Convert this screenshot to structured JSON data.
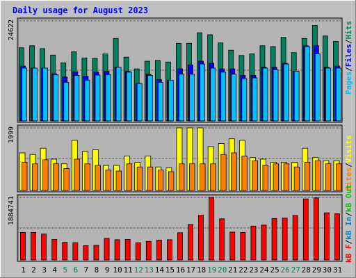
{
  "colors": {
    "background": "#c0c0c0",
    "panel": "#b4b4b4",
    "title": "#0000ff",
    "hits": "#00805c",
    "files": "#0000ff",
    "pages": "#00c0ff",
    "visits": "#ffff00",
    "sites": "#ff8000",
    "kbf": "#ff0000",
    "kbin": "#0080c0",
    "kbout": "#00c000",
    "weekend_day": "#00805c"
  },
  "chart_data": [
    {
      "type": "bar",
      "title": "Daily usage for August 2023",
      "panel": "hits-files-pages",
      "categories": [
        "1",
        "2",
        "3",
        "4",
        "5",
        "6",
        "7",
        "8",
        "9",
        "10",
        "11",
        "12",
        "13",
        "14",
        "15",
        "16",
        "17",
        "18",
        "19",
        "20",
        "21",
        "22",
        "23",
        "24",
        "25",
        "26",
        "27",
        "28",
        "29",
        "30",
        "31"
      ],
      "weekend_days": [
        "5",
        "6",
        "12",
        "13",
        "19",
        "20",
        "26",
        "27"
      ],
      "ymax_label": "24622",
      "ylim": [
        0,
        24622
      ],
      "legend": {
        "pages": "Pages",
        "files": "Files",
        "hits": "Hits",
        "sep": "/"
      },
      "series": [
        {
          "name": "Hits",
          "values": [
            18000,
            18500,
            17800,
            16200,
            14300,
            17000,
            15500,
            15400,
            16500,
            20300,
            15700,
            12800,
            14700,
            14900,
            14500,
            19100,
            19100,
            21700,
            21200,
            19200,
            17400,
            16100,
            16500,
            18500,
            18300,
            20600,
            16800,
            20300,
            23500,
            20900,
            19600
          ]
        },
        {
          "name": "Files",
          "values": [
            13500,
            13000,
            13000,
            11600,
            10800,
            12100,
            11000,
            12000,
            12200,
            13200,
            12200,
            9200,
            11500,
            10200,
            10000,
            12800,
            13800,
            14700,
            14200,
            12800,
            12800,
            11200,
            11200,
            13200,
            13200,
            14200,
            12200,
            18500,
            18500,
            13200,
            13500
          ]
        },
        {
          "name": "Pages",
          "values": [
            13000,
            13000,
            13000,
            11400,
            9500,
            11200,
            10000,
            11300,
            11400,
            13200,
            12000,
            9200,
            11200,
            9500,
            10000,
            11500,
            11500,
            14000,
            13000,
            12000,
            11500,
            10400,
            10600,
            13000,
            12600,
            14000,
            12200,
            18300,
            16500,
            13000,
            13000
          ]
        }
      ]
    },
    {
      "type": "bar",
      "panel": "visits-sites",
      "categories": [
        "1",
        "2",
        "3",
        "4",
        "5",
        "6",
        "7",
        "8",
        "9",
        "10",
        "11",
        "12",
        "13",
        "14",
        "15",
        "16",
        "17",
        "18",
        "19",
        "20",
        "21",
        "22",
        "23",
        "24",
        "25",
        "26",
        "27",
        "28",
        "29",
        "30",
        "31"
      ],
      "ymax_label": "1999",
      "ylim": [
        0,
        1999
      ],
      "legend": {
        "visits": "Visits",
        "sites": "Sites",
        "sep": "/"
      },
      "series": [
        {
          "name": "Visits",
          "values": [
            1200,
            1150,
            1350,
            1000,
            850,
            1600,
            1250,
            1300,
            800,
            800,
            1100,
            900,
            1100,
            750,
            720,
            1999,
            1999,
            1999,
            1400,
            1500,
            1650,
            1600,
            1050,
            1000,
            900,
            900,
            900,
            1350,
            1050,
            950,
            950
          ]
        },
        {
          "name": "Sites",
          "values": [
            900,
            850,
            980,
            850,
            700,
            1000,
            850,
            800,
            650,
            620,
            850,
            750,
            750,
            650,
            600,
            850,
            850,
            850,
            850,
            1150,
            1200,
            1100,
            950,
            800,
            850,
            850,
            750,
            900,
            950,
            850,
            850
          ]
        }
      ]
    },
    {
      "type": "bar",
      "panel": "kbytes",
      "categories": [
        "1",
        "2",
        "3",
        "4",
        "5",
        "6",
        "7",
        "8",
        "9",
        "10",
        "11",
        "12",
        "13",
        "14",
        "15",
        "16",
        "17",
        "18",
        "19",
        "20",
        "21",
        "22",
        "23",
        "24",
        "25",
        "26",
        "27",
        "28",
        "29",
        "30",
        "31"
      ],
      "ymax_label": "1884741",
      "ylim": [
        0,
        1884741
      ],
      "legend": {
        "kbf": "kB F",
        "kbin": "kB In",
        "kbout": "kB Out",
        "sep": "/"
      },
      "series": [
        {
          "name": "kB F",
          "values": [
            830000,
            830000,
            780000,
            620000,
            530000,
            520000,
            430000,
            440000,
            650000,
            610000,
            620000,
            520000,
            560000,
            600000,
            610000,
            820000,
            1070000,
            1350000,
            1884741,
            1240000,
            840000,
            830000,
            1020000,
            1050000,
            1250000,
            1260000,
            1340000,
            1840000,
            1870000,
            1420000,
            1390000
          ]
        }
      ]
    }
  ]
}
